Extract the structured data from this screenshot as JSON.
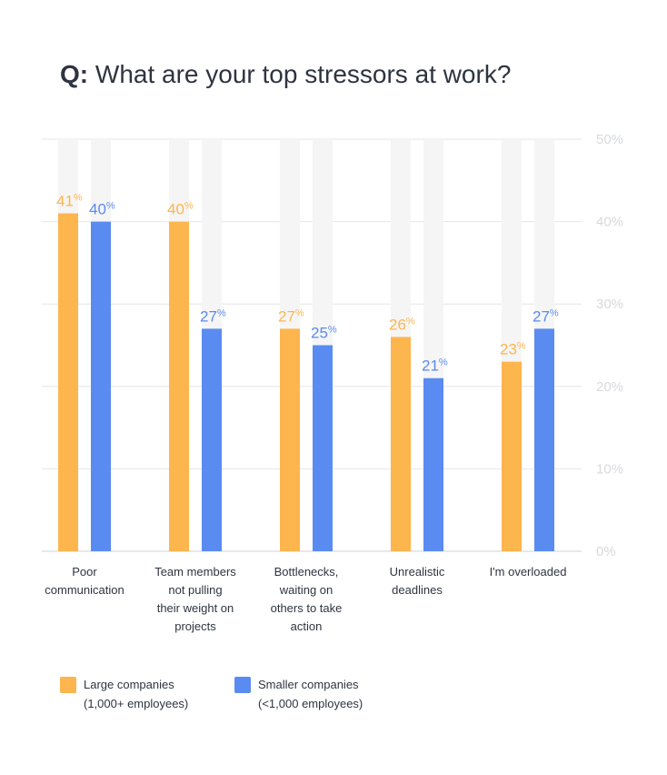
{
  "title": {
    "prefix": "Q:",
    "text": "What are your top stressors at work?"
  },
  "colors": {
    "large": "#fdb54e",
    "small": "#5a8bf0",
    "track": "#f5f5f5",
    "grid": "#e6e6e6",
    "tick": "#d7d9dd"
  },
  "chart_data": {
    "type": "bar",
    "title": "What are your top stressors at work?",
    "categories": [
      [
        "Poor",
        "communication"
      ],
      [
        "Team members",
        "not pulling",
        "their weight on",
        "projects"
      ],
      [
        "Bottlenecks,",
        "waiting on",
        "others to take",
        "action"
      ],
      [
        "Unrealistic",
        "deadlines"
      ],
      [
        "I'm overloaded"
      ]
    ],
    "series": [
      {
        "name": "Large companies (1,000+ employees)",
        "color": "#fdb54e",
        "values": [
          41,
          40,
          27,
          26,
          23
        ]
      },
      {
        "name": "Smaller companies (<1,000 employees)",
        "color": "#5a8bf0",
        "values": [
          40,
          27,
          25,
          21,
          27
        ]
      }
    ],
    "ylim": [
      0,
      50
    ],
    "yticks": [
      "0%",
      "10%",
      "20%",
      "30%",
      "40%",
      "50%"
    ],
    "value_suffix": "%",
    "grid": true,
    "legend_position": "bottom-left"
  },
  "legend": [
    {
      "line1": "Large companies",
      "line2": "(1,000+ employees)",
      "color": "#fdb54e"
    },
    {
      "line1": "Smaller companies",
      "line2": "(<1,000 employees)",
      "color": "#5a8bf0"
    }
  ]
}
